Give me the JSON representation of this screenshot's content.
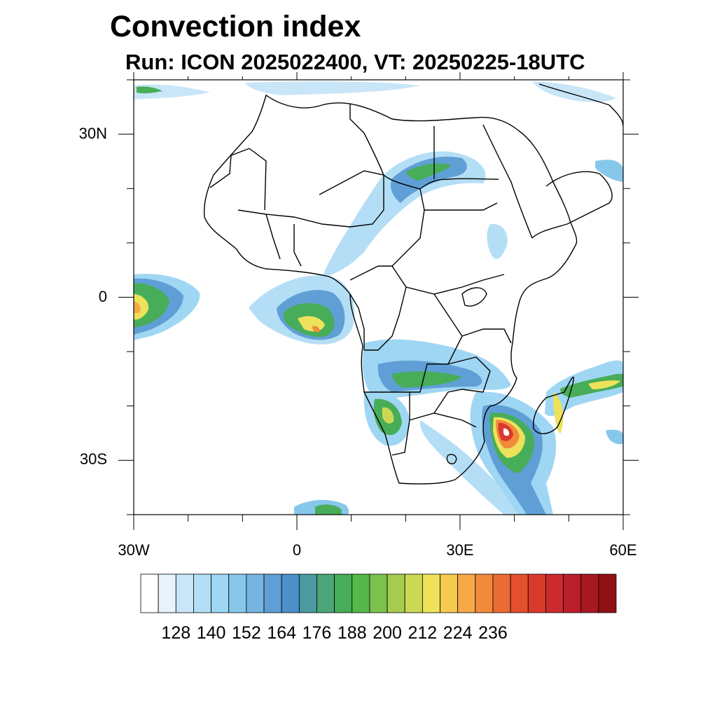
{
  "title": "Convection index",
  "subtitle": "Run: ICON 2025022400,  VT: 20250225-18UTC",
  "map": {
    "lon_range": [
      -30,
      60
    ],
    "lat_range": [
      -40,
      40
    ],
    "lat_ticks": [
      {
        "value": 30,
        "label": "30N"
      },
      {
        "value": 0,
        "label": "0"
      },
      {
        "value": -30,
        "label": "30S"
      }
    ],
    "lon_ticks": [
      {
        "value": -30,
        "label": "30W"
      },
      {
        "value": 0,
        "label": "0"
      },
      {
        "value": 30,
        "label": "30E"
      },
      {
        "value": 60,
        "label": "60E"
      }
    ],
    "land_outline_color": "#000000"
  },
  "colorbar": {
    "colors": [
      "#ffffff",
      "#e6f3fb",
      "#c8e6f7",
      "#b4def5",
      "#9fd6f3",
      "#88c7ec",
      "#74b5e2",
      "#5f9fd6",
      "#4d8fc8",
      "#4a9aa0",
      "#4aa57a",
      "#48ad58",
      "#55b84a",
      "#7cc14c",
      "#a5cc4f",
      "#cbd853",
      "#ede25a",
      "#f7cb4f",
      "#f6a947",
      "#f28a3c",
      "#ec6a33",
      "#e3502d",
      "#d93a2c",
      "#cc2a2e",
      "#bb1f2b",
      "#a8191f",
      "#8f1115"
    ],
    "labels": [
      "128",
      "140",
      "152",
      "164",
      "176",
      "188",
      "200",
      "212",
      "224",
      "236"
    ]
  }
}
